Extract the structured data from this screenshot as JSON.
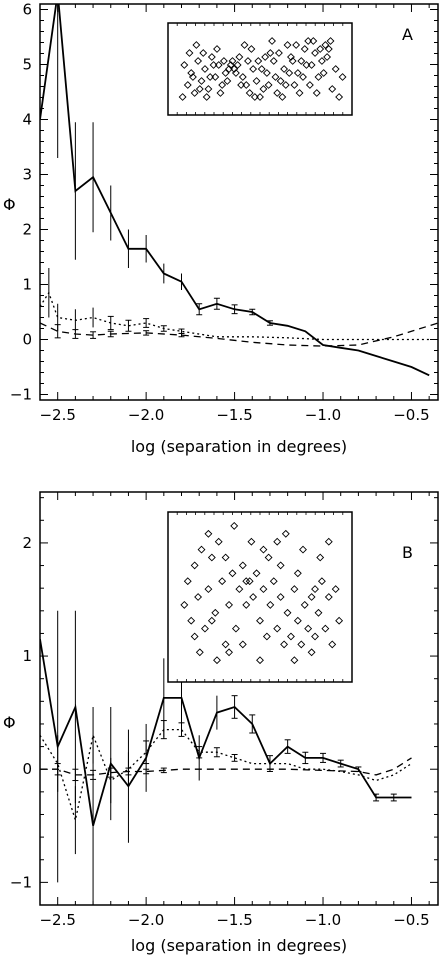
{
  "chart_data": [
    {
      "type": "line",
      "panel_label": "A",
      "xlabel": "log (separation in degrees)",
      "ylabel": "Φ",
      "xlim": [
        -2.6,
        -0.35
      ],
      "ylim": [
        -1.1,
        6.1
      ],
      "xticks": [
        -2.5,
        -2.0,
        -1.5,
        -1.0,
        -0.5
      ],
      "xtick_labels": [
        "−2.5",
        "−2.0",
        "−1.5",
        "−1.0",
        "−0.5"
      ],
      "yticks": [
        -1,
        0,
        1,
        2,
        3,
        4,
        5,
        6
      ],
      "ytick_labels": [
        "−1",
        "0",
        "1",
        "2",
        "3",
        "4",
        "5",
        "6"
      ],
      "series": [
        {
          "style": "solid",
          "x": [
            -2.6,
            -2.5,
            -2.4,
            -2.3,
            -2.2,
            -2.1,
            -2.0,
            -1.9,
            -1.8,
            -1.7,
            -1.6,
            -1.5,
            -1.4,
            -1.3,
            -1.2,
            -1.1,
            -1.0,
            -0.9,
            -0.8,
            -0.7,
            -0.6,
            -0.5,
            -0.4
          ],
          "y": [
            4.0,
            6.3,
            2.7,
            2.95,
            2.3,
            1.65,
            1.65,
            1.2,
            1.05,
            0.55,
            0.65,
            0.55,
            0.5,
            0.3,
            0.25,
            0.15,
            -0.1,
            -0.15,
            -0.2,
            -0.3,
            -0.4,
            -0.5,
            -0.65
          ],
          "err": [
            0.0,
            3.0,
            1.25,
            1.0,
            0.5,
            0.35,
            0.25,
            0.18,
            0.15,
            0.1,
            0.1,
            0.08,
            0.05,
            0.04,
            0.0,
            0.0,
            0.0,
            0.0,
            0.0,
            0.0,
            0.0,
            0.0,
            0.0
          ]
        },
        {
          "style": "dotted",
          "x": [
            -2.6,
            -2.55,
            -2.5,
            -2.4,
            -2.3,
            -2.2,
            -2.1,
            -2.0,
            -1.9,
            -1.8,
            -1.6,
            -1.4,
            -1.2,
            -1.0,
            -0.8,
            -0.6,
            -0.4
          ],
          "y": [
            0.6,
            0.85,
            0.4,
            0.35,
            0.4,
            0.3,
            0.25,
            0.3,
            0.2,
            0.15,
            0.05,
            0.05,
            0.03,
            0.0,
            0.0,
            0.0,
            0.0
          ],
          "err": [
            0.0,
            0.45,
            0.25,
            0.2,
            0.18,
            0.12,
            0.1,
            0.08,
            0.05,
            0.04,
            0.0,
            0.0,
            0.0,
            0.0,
            0.0,
            0.0,
            0.0
          ]
        },
        {
          "style": "dashed",
          "x": [
            -2.6,
            -2.5,
            -2.4,
            -2.3,
            -2.2,
            -2.0,
            -1.8,
            -1.6,
            -1.4,
            -1.2,
            -1.0,
            -0.8,
            -0.6,
            -0.5,
            -0.35
          ],
          "y": [
            0.3,
            0.15,
            0.1,
            0.08,
            0.1,
            0.12,
            0.08,
            0.02,
            -0.05,
            -0.1,
            -0.12,
            -0.1,
            0.05,
            0.15,
            0.3
          ],
          "err": [
            0.0,
            0.12,
            0.08,
            0.06,
            0.05,
            0.04,
            0.03,
            0.0,
            0.0,
            0.0,
            0.0,
            0.0,
            0.0,
            0.0,
            0.0
          ]
        }
      ],
      "inset": {
        "type": "scatter",
        "marker": "diamond",
        "points": [
          [
            0.05,
            0.15
          ],
          [
            0.08,
            0.3
          ],
          [
            0.1,
            0.45
          ],
          [
            0.12,
            0.2
          ],
          [
            0.14,
            0.6
          ],
          [
            0.16,
            0.35
          ],
          [
            0.18,
            0.5
          ],
          [
            0.2,
            0.25
          ],
          [
            0.22,
            0.65
          ],
          [
            0.24,
            0.4
          ],
          [
            0.26,
            0.55
          ],
          [
            0.28,
            0.3
          ],
          [
            0.3,
            0.45
          ],
          [
            0.32,
            0.5
          ],
          [
            0.33,
            0.55
          ],
          [
            0.34,
            0.6
          ],
          [
            0.35,
            0.5
          ],
          [
            0.36,
            0.45
          ],
          [
            0.37,
            0.55
          ],
          [
            0.38,
            0.65
          ],
          [
            0.4,
            0.4
          ],
          [
            0.42,
            0.3
          ],
          [
            0.44,
            0.2
          ],
          [
            0.46,
            0.5
          ],
          [
            0.48,
            0.35
          ],
          [
            0.5,
            0.15
          ],
          [
            0.52,
            0.25
          ],
          [
            0.54,
            0.45
          ],
          [
            0.56,
            0.7
          ],
          [
            0.58,
            0.6
          ],
          [
            0.6,
            0.2
          ],
          [
            0.62,
            0.35
          ],
          [
            0.64,
            0.5
          ],
          [
            0.66,
            0.8
          ],
          [
            0.68,
            0.65
          ],
          [
            0.7,
            0.3
          ],
          [
            0.72,
            0.45
          ],
          [
            0.74,
            0.6
          ],
          [
            0.76,
            0.75
          ],
          [
            0.78,
            0.85
          ],
          [
            0.8,
            0.55
          ],
          [
            0.82,
            0.7
          ],
          [
            0.84,
            0.4
          ],
          [
            0.86,
            0.6
          ],
          [
            0.88,
            0.8
          ],
          [
            0.9,
            0.75
          ],
          [
            0.92,
            0.25
          ],
          [
            0.94,
            0.5
          ],
          [
            0.96,
            0.15
          ],
          [
            0.98,
            0.4
          ],
          [
            0.06,
            0.55
          ],
          [
            0.09,
            0.7
          ],
          [
            0.11,
            0.4
          ],
          [
            0.13,
            0.8
          ],
          [
            0.15,
            0.25
          ],
          [
            0.17,
            0.7
          ],
          [
            0.19,
            0.15
          ],
          [
            0.21,
            0.4
          ],
          [
            0.23,
            0.55
          ],
          [
            0.25,
            0.75
          ],
          [
            0.27,
            0.2
          ],
          [
            0.29,
            0.6
          ],
          [
            0.31,
            0.35
          ],
          [
            0.39,
            0.3
          ],
          [
            0.41,
            0.8
          ],
          [
            0.43,
            0.6
          ],
          [
            0.45,
            0.75
          ],
          [
            0.47,
            0.15
          ],
          [
            0.49,
            0.6
          ],
          [
            0.51,
            0.5
          ],
          [
            0.53,
            0.65
          ],
          [
            0.55,
            0.3
          ],
          [
            0.57,
            0.85
          ],
          [
            0.59,
            0.4
          ],
          [
            0.61,
            0.7
          ],
          [
            0.63,
            0.15
          ],
          [
            0.65,
            0.3
          ],
          [
            0.67,
            0.45
          ],
          [
            0.69,
            0.6
          ],
          [
            0.71,
            0.8
          ],
          [
            0.73,
            0.2
          ],
          [
            0.75,
            0.4
          ],
          [
            0.77,
            0.55
          ],
          [
            0.79,
            0.3
          ],
          [
            0.81,
            0.85
          ],
          [
            0.83,
            0.2
          ],
          [
            0.85,
            0.75
          ],
          [
            0.87,
            0.45
          ],
          [
            0.89,
            0.65
          ],
          [
            0.91,
            0.85
          ]
        ]
      }
    },
    {
      "type": "line",
      "panel_label": "B",
      "xlabel": "log (separation in degrees)",
      "ylabel": "Φ",
      "xlim": [
        -2.6,
        -0.35
      ],
      "ylim": [
        -1.2,
        2.45
      ],
      "xticks": [
        -2.5,
        -2.0,
        -1.5,
        -1.0,
        -0.5
      ],
      "xtick_labels": [
        "−2.5",
        "−2.0",
        "−1.5",
        "−1.0",
        "−0.5"
      ],
      "yticks": [
        -1,
        0,
        1,
        2
      ],
      "ytick_labels": [
        "−1",
        "0",
        "1",
        "2"
      ],
      "series": [
        {
          "style": "solid",
          "x": [
            -2.6,
            -2.5,
            -2.4,
            -2.3,
            -2.2,
            -2.1,
            -2.0,
            -1.9,
            -1.8,
            -1.7,
            -1.6,
            -1.5,
            -1.4,
            -1.3,
            -1.2,
            -1.1,
            -1.0,
            -0.9,
            -0.8,
            -0.7,
            -0.6,
            -0.5
          ],
          "y": [
            1.15,
            0.2,
            0.55,
            -0.5,
            0.05,
            -0.15,
            0.1,
            0.63,
            0.63,
            0.1,
            0.5,
            0.55,
            0.4,
            0.05,
            0.2,
            0.1,
            0.1,
            0.05,
            0.0,
            -0.25,
            -0.25,
            -0.25
          ],
          "err": [
            0.0,
            1.2,
            0.85,
            0.8,
            0.5,
            0.5,
            0.3,
            0.35,
            0.28,
            0.2,
            0.15,
            0.1,
            0.08,
            0.07,
            0.06,
            0.05,
            0.04,
            0.03,
            0.02,
            0.03,
            0.03,
            0.0
          ]
        },
        {
          "style": "dotted",
          "x": [
            -2.6,
            -2.5,
            -2.4,
            -2.3,
            -2.2,
            -2.1,
            -2.0,
            -1.9,
            -1.8,
            -1.7,
            -1.6,
            -1.5,
            -1.4,
            -1.3,
            -1.2,
            -1.1,
            -1.0,
            -0.9,
            -0.8,
            -0.7,
            -0.6,
            -0.5
          ],
          "y": [
            0.3,
            0.05,
            -0.45,
            0.3,
            -0.1,
            0.0,
            0.15,
            0.35,
            0.35,
            0.15,
            0.15,
            0.1,
            0.05,
            0.05,
            0.05,
            0.0,
            0.0,
            -0.02,
            -0.05,
            -0.1,
            -0.05,
            0.05
          ],
          "err": [
            0.0,
            0.25,
            0.3,
            0.25,
            0.2,
            0.15,
            0.1,
            0.08,
            0.06,
            0.05,
            0.04,
            0.03,
            0.0,
            0.0,
            0.0,
            0.0,
            0.0,
            0.0,
            0.0,
            0.0,
            0.0,
            0.0
          ]
        },
        {
          "style": "dashed",
          "x": [
            -2.6,
            -2.5,
            -2.4,
            -2.3,
            -2.2,
            -2.1,
            -2.0,
            -1.9,
            -1.8,
            -1.6,
            -1.4,
            -1.2,
            -1.0,
            -0.8,
            -0.7,
            -0.6,
            -0.5
          ],
          "y": [
            0.0,
            0.0,
            -0.05,
            -0.05,
            -0.03,
            -0.02,
            -0.02,
            -0.01,
            0.0,
            0.0,
            0.0,
            0.0,
            -0.01,
            -0.02,
            -0.05,
            0.0,
            0.1
          ],
          "err": [
            0.0,
            0.05,
            0.05,
            0.04,
            0.04,
            0.03,
            0.02,
            0.02,
            0.0,
            0.0,
            0.0,
            0.0,
            0.0,
            0.0,
            0.0,
            0.0,
            0.0
          ]
        }
      ],
      "inset": {
        "type": "scatter",
        "marker": "diamond",
        "points": [
          [
            0.06,
            0.45
          ],
          [
            0.08,
            0.6
          ],
          [
            0.1,
            0.35
          ],
          [
            0.12,
            0.7
          ],
          [
            0.14,
            0.5
          ],
          [
            0.16,
            0.8
          ],
          [
            0.18,
            0.3
          ],
          [
            0.2,
            0.55
          ],
          [
            0.22,
            0.75
          ],
          [
            0.24,
            0.4
          ],
          [
            0.26,
            0.85
          ],
          [
            0.28,
            0.6
          ],
          [
            0.3,
            0.2
          ],
          [
            0.32,
            0.45
          ],
          [
            0.34,
            0.65
          ],
          [
            0.36,
            0.3
          ],
          [
            0.38,
            0.55
          ],
          [
            0.4,
            0.7
          ],
          [
            0.42,
            0.45
          ],
          [
            0.44,
            0.6
          ],
          [
            0.46,
            0.5
          ],
          [
            0.48,
            0.65
          ],
          [
            0.5,
            0.35
          ],
          [
            0.52,
            0.55
          ],
          [
            0.54,
            0.25
          ],
          [
            0.56,
            0.45
          ],
          [
            0.58,
            0.6
          ],
          [
            0.6,
            0.3
          ],
          [
            0.62,
            0.5
          ],
          [
            0.64,
            0.2
          ],
          [
            0.66,
            0.4
          ],
          [
            0.68,
            0.25
          ],
          [
            0.7,
            0.55
          ],
          [
            0.72,
            0.35
          ],
          [
            0.74,
            0.2
          ],
          [
            0.76,
            0.45
          ],
          [
            0.78,
            0.3
          ],
          [
            0.8,
            0.5
          ],
          [
            0.82,
            0.25
          ],
          [
            0.84,
            0.4
          ],
          [
            0.86,
            0.6
          ],
          [
            0.88,
            0.3
          ],
          [
            0.9,
            0.5
          ],
          [
            0.92,
            0.2
          ],
          [
            0.94,
            0.55
          ],
          [
            0.96,
            0.35
          ],
          [
            0.15,
            0.15
          ],
          [
            0.25,
            0.1
          ],
          [
            0.35,
            0.95
          ],
          [
            0.45,
            0.85
          ],
          [
            0.55,
            0.75
          ],
          [
            0.65,
            0.9
          ],
          [
            0.75,
            0.8
          ],
          [
            0.85,
            0.75
          ],
          [
            0.2,
            0.9
          ],
          [
            0.3,
            0.75
          ],
          [
            0.4,
            0.2
          ],
          [
            0.5,
            0.1
          ],
          [
            0.6,
            0.85
          ],
          [
            0.7,
            0.1
          ],
          [
            0.8,
            0.15
          ],
          [
            0.9,
            0.85
          ],
          [
            0.12,
            0.25
          ],
          [
            0.22,
            0.35
          ],
          [
            0.32,
            0.15
          ],
          [
            0.42,
            0.6
          ],
          [
            0.52,
            0.8
          ],
          [
            0.62,
            0.7
          ],
          [
            0.72,
            0.65
          ],
          [
            0.82,
            0.55
          ]
        ]
      }
    }
  ]
}
